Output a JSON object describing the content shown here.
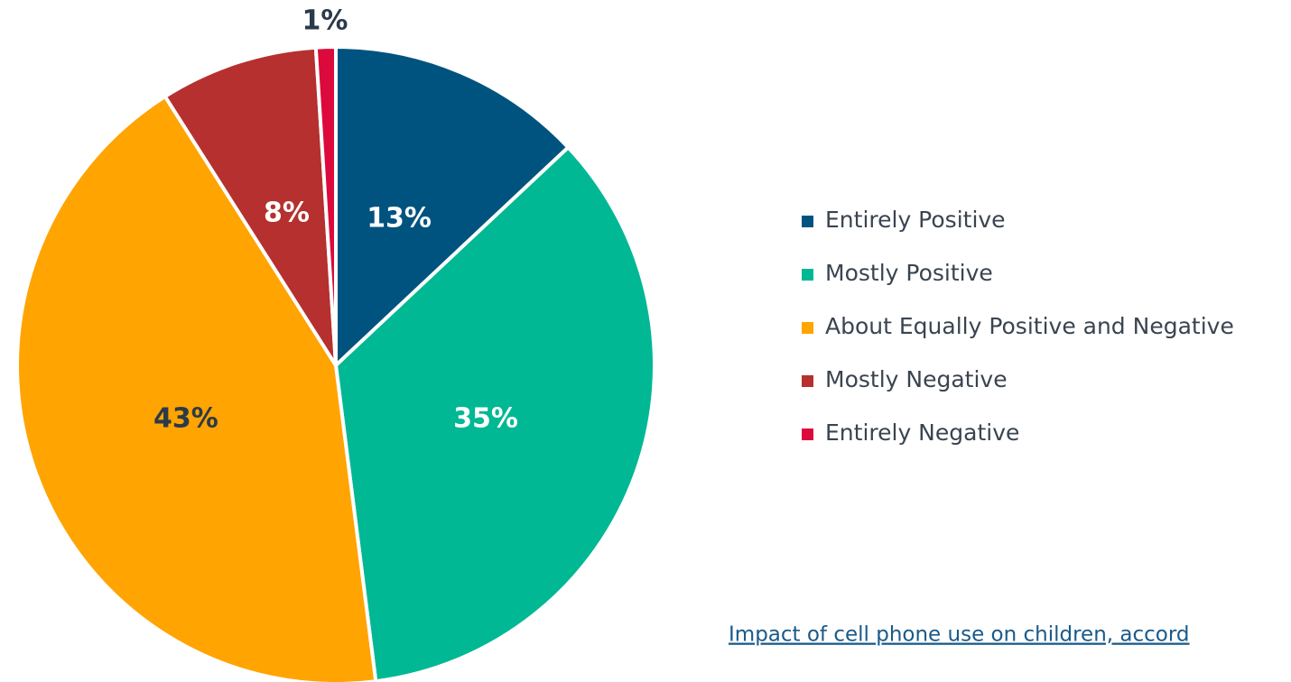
{
  "chart_data": {
    "type": "pie",
    "categories": [
      "Entirely Positive",
      "Mostly Positive",
      "About Equally Positive and Negative",
      "Mostly Negative",
      "Entirely Negative"
    ],
    "values": [
      13,
      35,
      43,
      8,
      1
    ],
    "value_labels": [
      "13%",
      "35%",
      "43%",
      "8%",
      "1%"
    ],
    "colors": [
      "#00537f",
      "#00b894",
      "#ffa400",
      "#b5302e",
      "#dc0a3c"
    ],
    "label_colors": [
      "#ffffff",
      "#ffffff",
      "#2b3a4a",
      "#ffffff",
      "#2b3a4a"
    ],
    "legend": "right",
    "caption": "Impact of cell phone use on children, accord"
  }
}
